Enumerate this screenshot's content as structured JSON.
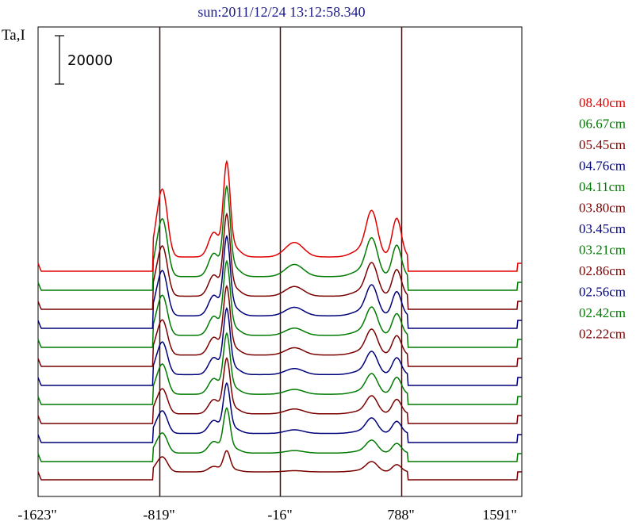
{
  "chart_data": {
    "type": "line",
    "title": "sun:2011/12/24 13:12:58.340",
    "ylabel": "Ta,I",
    "xlabel": "",
    "x_ticks": [
      "-1623\"",
      "-819\"",
      "-16\"",
      "788\"",
      "1591\""
    ],
    "x_tick_values": [
      -1623,
      -819,
      -16,
      788,
      1591
    ],
    "xlim": [
      -1623,
      1591
    ],
    "scale_bar_label": "20000",
    "vertical_lines_at": [
      -819,
      -16,
      788
    ],
    "legend_position": "right",
    "series": [
      {
        "name": "02.22cm",
        "color": "#7a0000",
        "peak_left": 6000,
        "peak_center": 8000,
        "peak_mid": 500,
        "peak_right1": 4000,
        "peak_right2": 3000
      },
      {
        "name": "02.42cm",
        "color": "#007a00",
        "peak_left": 8000,
        "peak_center": 17000,
        "peak_mid": 1000,
        "peak_right1": 5000,
        "peak_right2": 4000
      },
      {
        "name": "02.56cm",
        "color": "#00007a",
        "peak_left": 9000,
        "peak_center": 19000,
        "peak_mid": 1500,
        "peak_right1": 6000,
        "peak_right2": 5000
      },
      {
        "name": "02.86cm",
        "color": "#7a0000",
        "peak_left": 10000,
        "peak_center": 21000,
        "peak_mid": 2000,
        "peak_right1": 7000,
        "peak_right2": 6000
      },
      {
        "name": "03.21cm",
        "color": "#007a00",
        "peak_left": 12000,
        "peak_center": 23000,
        "peak_mid": 2000,
        "peak_right1": 8000,
        "peak_right2": 7000
      },
      {
        "name": "03.45cm",
        "color": "#00007a",
        "peak_left": 13000,
        "peak_center": 25000,
        "peak_mid": 2500,
        "peak_right1": 9000,
        "peak_right2": 7000
      },
      {
        "name": "03.80cm",
        "color": "#7a0000",
        "peak_left": 14000,
        "peak_center": 26000,
        "peak_mid": 3000,
        "peak_right1": 10000,
        "peak_right2": 8000
      },
      {
        "name": "04.11cm",
        "color": "#007a00",
        "peak_left": 16000,
        "peak_center": 28000,
        "peak_mid": 3000,
        "peak_right1": 11000,
        "peak_right2": 9000
      },
      {
        "name": "04.76cm",
        "color": "#00007a",
        "peak_left": 18000,
        "peak_center": 30000,
        "peak_mid": 3500,
        "peak_right1": 12000,
        "peak_right2": 10000
      },
      {
        "name": "05.45cm",
        "color": "#7a0000",
        "peak_left": 20000,
        "peak_center": 31000,
        "peak_mid": 4000,
        "peak_right1": 13000,
        "peak_right2": 11000
      },
      {
        "name": "06.67cm",
        "color": "#007a00",
        "peak_left": 23000,
        "peak_center": 34000,
        "peak_mid": 5000,
        "peak_right1": 15000,
        "peak_right2": 13000
      },
      {
        "name": "08.40cm",
        "color": "#e00000",
        "peak_left": 27000,
        "peak_center": 36000,
        "peak_mid": 6000,
        "peak_right1": 18000,
        "peak_right2": 16000
      }
    ]
  }
}
